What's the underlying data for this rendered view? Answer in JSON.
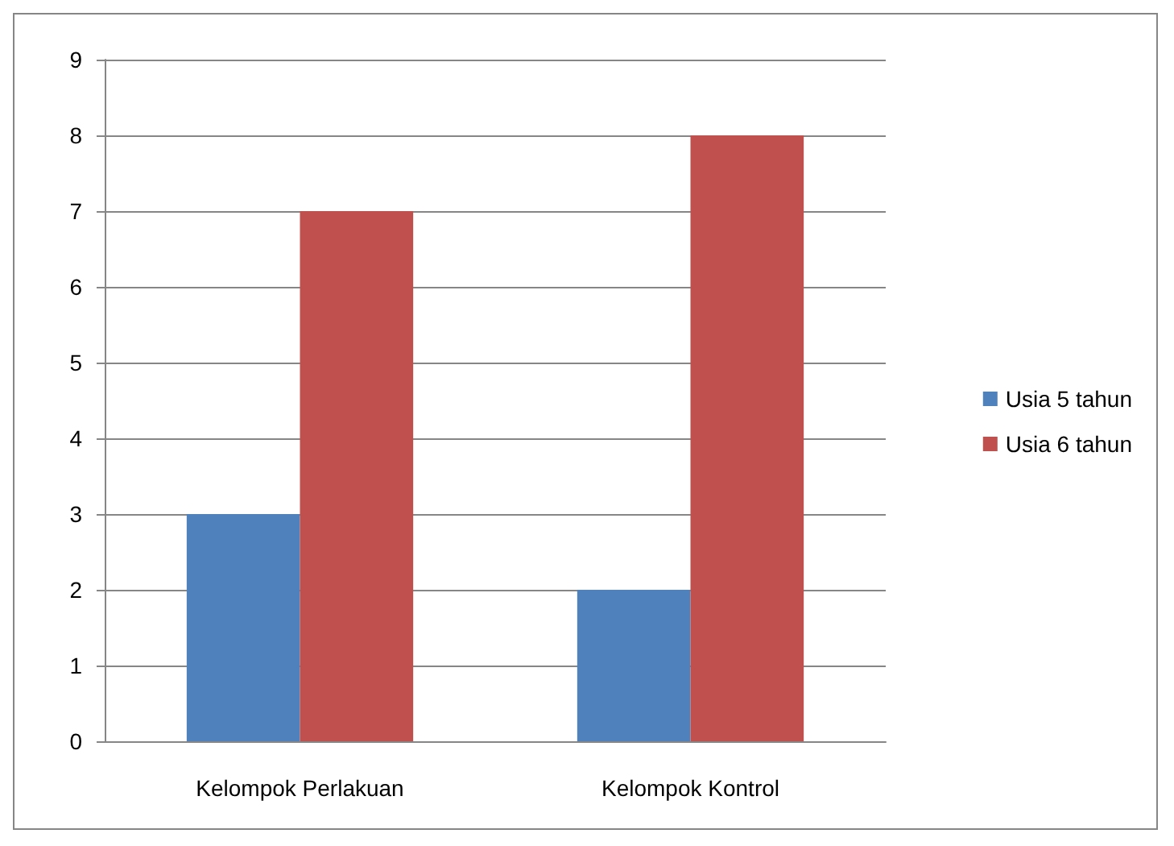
{
  "chart_data": {
    "type": "bar",
    "categories": [
      "Kelompok Perlakuan",
      "Kelompok Kontrol"
    ],
    "series": [
      {
        "name": "Usia 5 tahun",
        "color": "#4f81bd",
        "values": [
          3,
          2
        ]
      },
      {
        "name": "Usia 6 tahun",
        "color": "#c0504d",
        "values": [
          7,
          8
        ]
      }
    ],
    "ylim": [
      0,
      9
    ],
    "yticks": [
      0,
      1,
      2,
      3,
      4,
      5,
      6,
      7,
      8,
      9
    ],
    "grid": "y",
    "legend": "right"
  }
}
